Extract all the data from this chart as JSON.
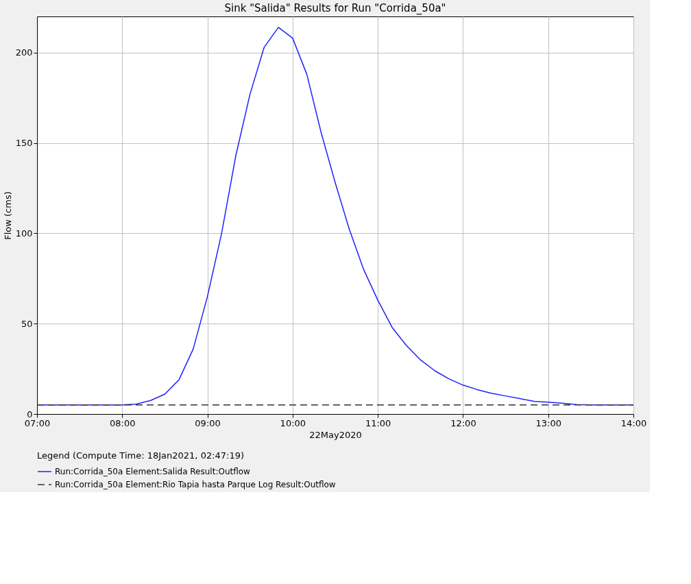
{
  "chart_data": {
    "type": "line",
    "title": "Sink \"Salida\" Results for Run \"Corrida_50a\"",
    "xlabel": "22May2020",
    "ylabel": "Flow (cms)",
    "legend_title": "Legend (Compute Time: 18Jan2021, 02:47:19)",
    "x": [
      "2020-05-22T07:00",
      "2020-05-22T07:10",
      "2020-05-22T07:20",
      "2020-05-22T07:30",
      "2020-05-22T07:40",
      "2020-05-22T07:50",
      "2020-05-22T08:00",
      "2020-05-22T08:10",
      "2020-05-22T08:20",
      "2020-05-22T08:30",
      "2020-05-22T08:40",
      "2020-05-22T08:50",
      "2020-05-22T09:00",
      "2020-05-22T09:10",
      "2020-05-22T09:20",
      "2020-05-22T09:30",
      "2020-05-22T09:40",
      "2020-05-22T09:50",
      "2020-05-22T10:00",
      "2020-05-22T10:10",
      "2020-05-22T10:20",
      "2020-05-22T10:30",
      "2020-05-22T10:40",
      "2020-05-22T10:50",
      "2020-05-22T11:00",
      "2020-05-22T11:10",
      "2020-05-22T11:20",
      "2020-05-22T11:30",
      "2020-05-22T11:40",
      "2020-05-22T11:50",
      "2020-05-22T12:00",
      "2020-05-22T12:10",
      "2020-05-22T12:20",
      "2020-05-22T12:30",
      "2020-05-22T12:40",
      "2020-05-22T12:50",
      "2020-05-22T13:00",
      "2020-05-22T13:10",
      "2020-05-22T13:20",
      "2020-05-22T13:30",
      "2020-05-22T13:40",
      "2020-05-22T13:50",
      "2020-05-22T14:00"
    ],
    "series": [
      {
        "name": "Run:Corrida_50a Element:Salida Result:Outflow",
        "color": "#2020ff",
        "line_style": "solid",
        "values": [
          5,
          5,
          5,
          5,
          5,
          5,
          5,
          5.5,
          7.5,
          11,
          19,
          36,
          65,
          100,
          143,
          177,
          203,
          214,
          208,
          188,
          156,
          128,
          102,
          80,
          63,
          48,
          38,
          30,
          24,
          19.5,
          16,
          13.5,
          11.5,
          10,
          8.5,
          7,
          6.5,
          6,
          5.2,
          5,
          5,
          5,
          5
        ]
      },
      {
        "name": "Run:Corrida_50a Element:Rio Tapia hasta Parque Log Result:Outflow",
        "color": "#333333",
        "line_style": "dashed",
        "values": [
          5,
          5,
          5,
          5,
          5,
          5,
          5,
          5,
          5,
          5,
          5,
          5,
          5,
          5,
          5,
          5,
          5,
          5,
          5,
          5,
          5,
          5,
          5,
          5,
          5,
          5,
          5,
          5,
          5,
          5,
          5,
          5,
          5,
          5,
          5,
          5,
          5,
          5,
          5,
          5,
          5,
          5,
          5
        ]
      }
    ],
    "xlim": [
      "2020-05-22T07:00",
      "2020-05-22T14:00"
    ],
    "xticks": [
      {
        "value": "2020-05-22T07:00",
        "label": "07:00"
      },
      {
        "value": "2020-05-22T08:00",
        "label": "08:00"
      },
      {
        "value": "2020-05-22T09:00",
        "label": "09:00"
      },
      {
        "value": "2020-05-22T10:00",
        "label": "10:00"
      },
      {
        "value": "2020-05-22T11:00",
        "label": "11:00"
      },
      {
        "value": "2020-05-22T12:00",
        "label": "12:00"
      },
      {
        "value": "2020-05-22T13:00",
        "label": "13:00"
      },
      {
        "value": "2020-05-22T14:00",
        "label": "14:00"
      }
    ],
    "ylim": [
      0,
      220
    ],
    "yticks": [
      0,
      50,
      100,
      150,
      200
    ],
    "grid": true,
    "legend": "bottom",
    "marker": "none"
  }
}
